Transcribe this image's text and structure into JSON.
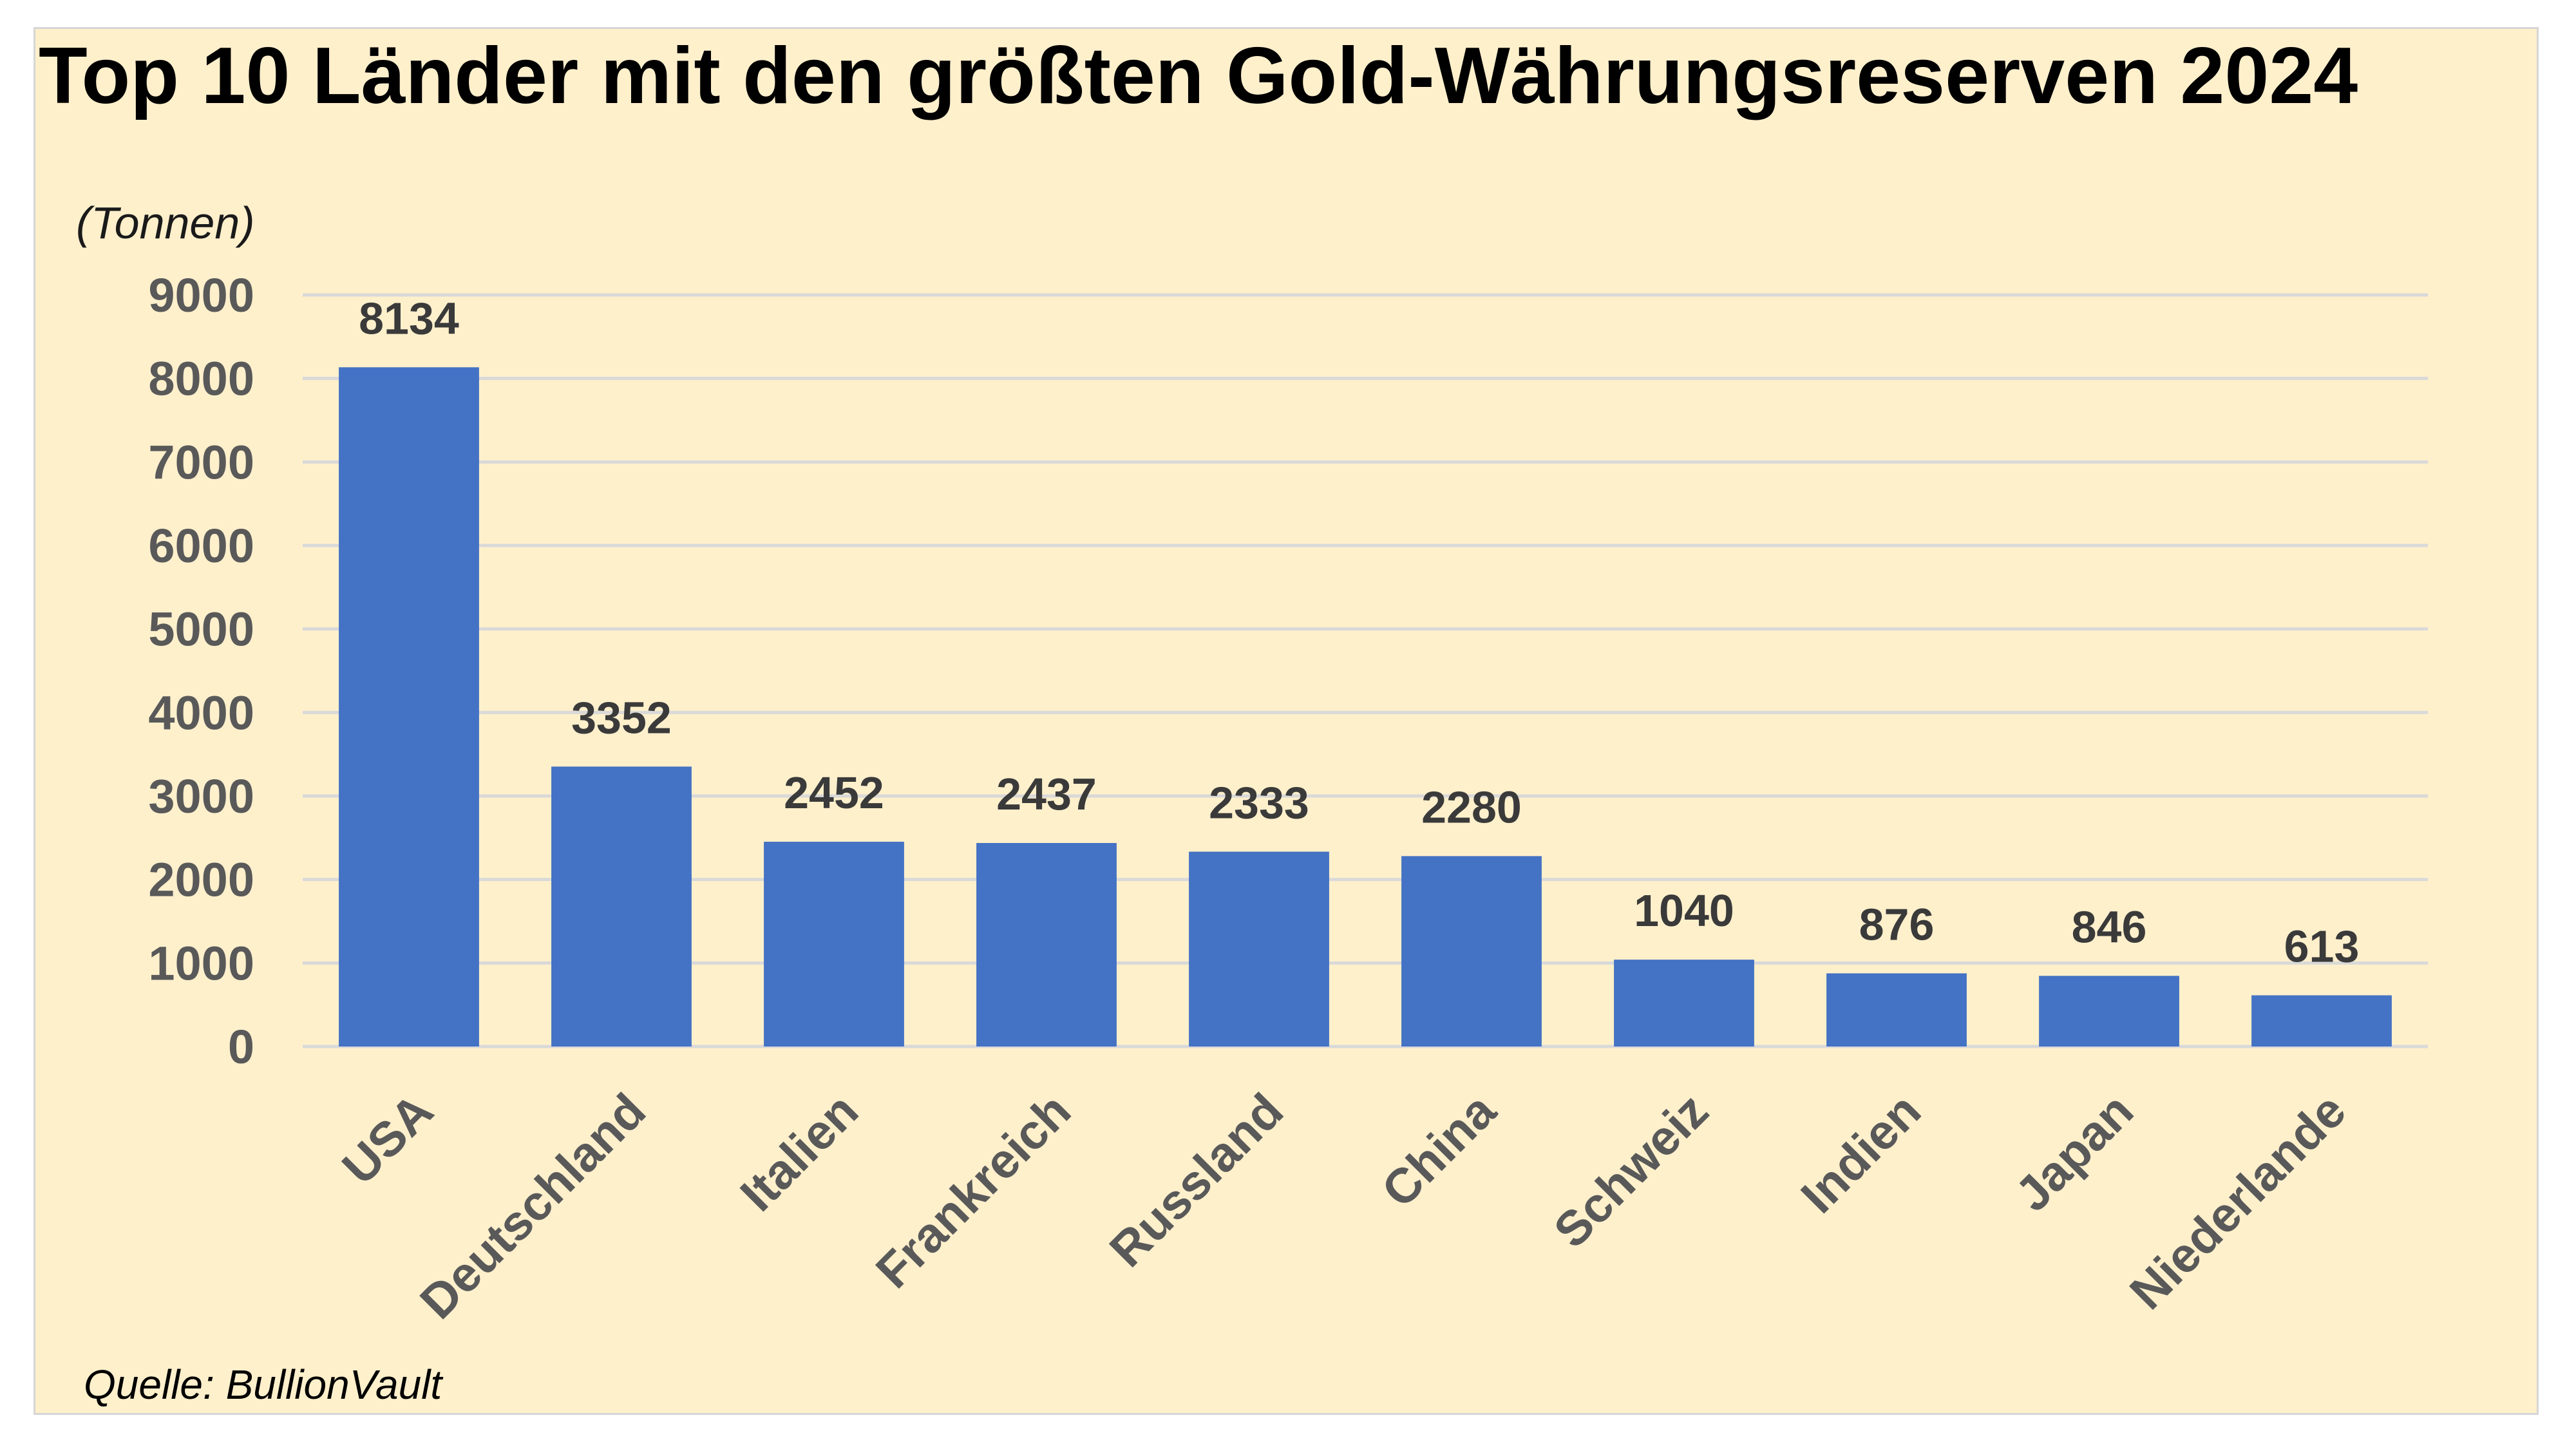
{
  "title": "Top 10 Länder mit den größten Gold-Währungsreserven 2024",
  "source": "Quelle: BullionVault",
  "colors": {
    "background": "#fff0cc",
    "bar": "#4472c4",
    "gridline": "#d9d9d9",
    "tick_text": "#595959"
  },
  "chart_data": {
    "type": "bar",
    "title": "Top 10 Länder mit den größten Gold-Währungsreserven 2024",
    "unit_label": "(Tonnen)",
    "xlabel": "",
    "ylabel": "",
    "categories": [
      "USA",
      "Deutschland",
      "Italien",
      "Frankreich",
      "Russland",
      "China",
      "Schweiz",
      "Indien",
      "Japan",
      "Niederlande"
    ],
    "values": [
      8134,
      3352,
      2452,
      2437,
      2333,
      2280,
      1040,
      876,
      846,
      613
    ],
    "data_labels": [
      "8134",
      "3352",
      "2452",
      "2437",
      "2333",
      "2280",
      "1040",
      "876",
      "846",
      "613"
    ],
    "yticks": [
      "0",
      "1000",
      "2000",
      "3000",
      "4000",
      "5000",
      "6000",
      "7000",
      "8000",
      "9000"
    ],
    "ylim": [
      0,
      9000
    ],
    "grid": true,
    "legend": "none",
    "source": "Quelle: BullionVault"
  }
}
